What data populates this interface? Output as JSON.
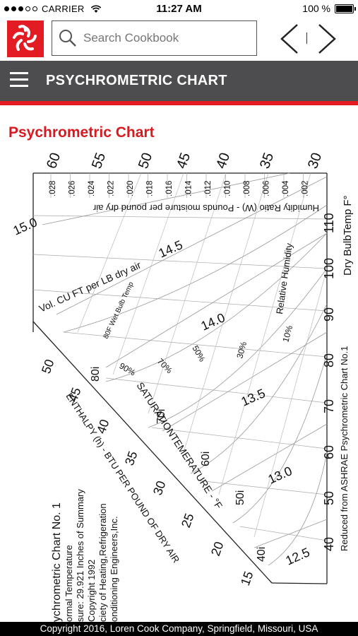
{
  "status_bar": {
    "carrier": "CARRIER",
    "time": "11:27 AM",
    "battery": "100 %"
  },
  "search": {
    "placeholder": "Search Cookbook"
  },
  "header": {
    "title": "PSYCHROMETRIC CHART"
  },
  "content": {
    "heading": "Psychrometric Chart",
    "chart_texts": {
      "humidity_ratio_title": "Humidity Ratio (W) - Pounds moisture per pound dry air",
      "dry_bulb_title": "Dry BulbTemp F°",
      "volume_title": "Vol. CU FT per LB dry air",
      "relative_humidity_title": "Relative Humidity",
      "wet_bulb_title": "80F Wet Bulb Temp",
      "saturation_title": "SATURATIONTEMERATURE - °F",
      "enthalpy_title": "ENTHALPY (h) - BTU PER POUND OF DRY AIR",
      "reduced_note": "Reduced from ASHRAE Psychrometric Chart No.1",
      "chart_name": "ychrometric Chart No. 1",
      "info_lines": [
        "ormal Temperature",
        "sure: 29.921 Inches of Summary",
        "Copyright 1992",
        "ciety of Heating,Refrigeration",
        "onditioning Engineers,Inc."
      ],
      "top_temps": [
        "60",
        "55",
        "50",
        "45",
        "40",
        "35",
        "30"
      ],
      "humidity_ticks": [
        ".028",
        ".026",
        ".024",
        ".022",
        ".020",
        ".018",
        ".016",
        ".014",
        ".012",
        ".010",
        ".008",
        ".006",
        ".004",
        ".002"
      ],
      "dry_bulb_ticks": [
        "110",
        "100",
        "90",
        "80",
        "70",
        "60",
        "50",
        "40"
      ],
      "volume_values": [
        "15.0",
        "14.5",
        "14.0",
        "13.5",
        "13.0",
        "12.5"
      ],
      "rh_values": [
        "10%",
        "30%",
        "50%",
        "70%",
        "90%"
      ],
      "wet_bulb_values": [
        "80i",
        "70i",
        "60i",
        "50i",
        "40i"
      ],
      "enthalpy_values": [
        "50",
        "45",
        "40",
        "35",
        "30",
        "25",
        "20",
        "15"
      ]
    }
  },
  "footer": {
    "copyright": "Copyright 2016, Loren Cook Company, Springfield, Missouri, USA"
  },
  "colors": {
    "brand_red": "#e31b23",
    "header_gray": "#4d4d4f"
  }
}
